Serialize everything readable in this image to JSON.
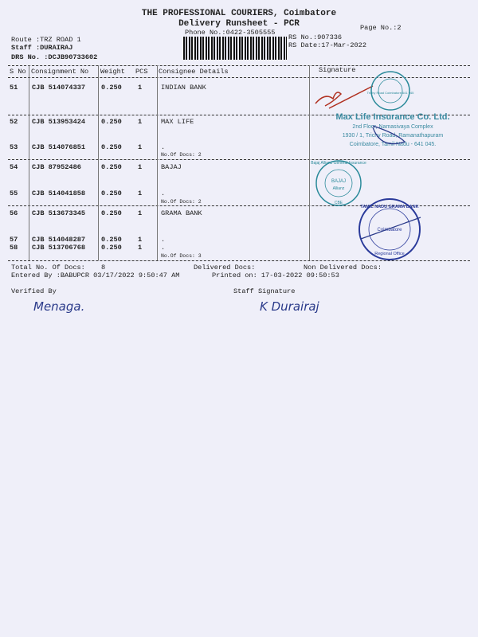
{
  "header": {
    "company": "THE PROFESSIONAL COURIERS, Coimbatore",
    "subtitle": "Delivery Runsheet - PCR",
    "phone": "Phone No.:0422-3505555",
    "page_no": "Page No.:2",
    "route": "Route :TRZ ROAD 1",
    "staff": "Staff :DURAIRAJ",
    "drs_no": "DRS No. :DCJB90733602",
    "rs_no": "RS No.:907336",
    "rs_date": "RS Date:17-Mar-2022"
  },
  "table": {
    "columns": [
      "S No",
      "Consignment No",
      "Weight",
      "PCS",
      "Consignee Details",
      "Signature"
    ],
    "rows": [
      {
        "sno": "51",
        "cons": "CJB 514074337",
        "weight": "0.250",
        "pcs": "1",
        "details": "INDIAN BANK"
      },
      {
        "sno": "52",
        "cons": "CJB 513953424",
        "weight": "0.250",
        "pcs": "1",
        "details": "MAX LIFE"
      },
      {
        "sno": "53",
        "cons": "CJB 514076851",
        "weight": "0.250",
        "pcs": "1",
        "details": "."
      },
      {
        "sno": "54",
        "cons": "CJB 87952486",
        "weight": "0.250",
        "pcs": "1",
        "details": "BAJAJ"
      },
      {
        "sno": "55",
        "cons": "CJB 514041858",
        "weight": "0.250",
        "pcs": "1",
        "details": "."
      },
      {
        "sno": "56",
        "cons": "CJB 513673345",
        "weight": "0.250",
        "pcs": "1",
        "details": "GRAMA BANK"
      },
      {
        "sno": "57",
        "cons": "CJB 514048287",
        "weight": "0.250",
        "pcs": "1",
        "details": "."
      },
      {
        "sno": "58",
        "cons": "CJB 513706768",
        "weight": "0.250",
        "pcs": "1",
        "details": "."
      }
    ],
    "group_docs": [
      "No.Of Docs: 2",
      "No.Of Docs: 2",
      "No.Of Docs: 3"
    ]
  },
  "stamps": {
    "indian_bank": "Trichy Road Coimbatore 641 045",
    "max_life": [
      "Max Life Insurance Co. Ltd.",
      "2nd Floor, Namasivaya Complex",
      "1930 / 1, Trichy Road, Ramanathapuram",
      "Coimbatore, Tamil Nadu - 641 045."
    ],
    "bajaj": [
      "Bajaj Allianz General Insurance",
      "BAJAJ",
      "Allianz",
      "CBE"
    ],
    "grama_bank": [
      "TAMIL NADU GRAMA BANK",
      "Coimbatore",
      "Regional Office"
    ]
  },
  "footer": {
    "total_docs_label": "Total No. Of Docs:",
    "total_docs": "8",
    "delivered_label": "Delivered Docs:",
    "non_delivered_label": "Non Delivered Docs:",
    "entered_by": "Entered By :BABUPCR 03/17/2022 9:50:47 AM",
    "printed_on": "Printed on: 17-03-2022 09:50:53",
    "verified_by": "Verified By",
    "staff_signature": "Staff Signature",
    "verified_signature": "Menaga.",
    "staff_signature_text": "K Durairaj"
  },
  "colors": {
    "paper": "#efeff9",
    "stamp_teal": "#2a8a9a",
    "stamp_blue": "#2a3a9a",
    "ink_red": "#b03020"
  }
}
